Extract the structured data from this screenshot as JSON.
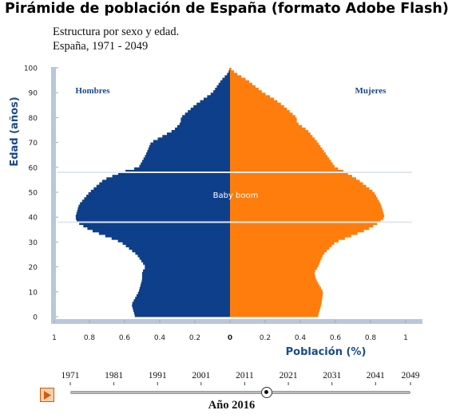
{
  "page": {
    "title": "Pirámide de población de España (formato Adobe Flash)",
    "subtitle1": "Estructura por sexo y edad.",
    "subtitle2": "España, 1971 - 2049"
  },
  "chart_data": {
    "type": "bar",
    "orientation": "horizontal-population-pyramid",
    "ylabel": "Edad (años)",
    "xlabel": "Población (%)",
    "y_ticks": [
      0,
      10,
      20,
      30,
      40,
      50,
      60,
      70,
      80,
      90,
      100
    ],
    "x_ticks_left": [
      "1",
      "0.8",
      "0.6",
      "0.4",
      "0.2",
      "0"
    ],
    "x_ticks_right": [
      "0.2",
      "0.4",
      "0.6",
      "0.8",
      "1"
    ],
    "xlim": [
      0,
      1
    ],
    "ylim": [
      0,
      100
    ],
    "annotation": "Baby boom",
    "annotation_lines_age": [
      38,
      58
    ],
    "series": [
      {
        "name": "Hombres",
        "color": "#0e3f8a",
        "ages": [
          0,
          5,
          10,
          15,
          18,
          20,
          25,
          30,
          35,
          38,
          40,
          45,
          50,
          55,
          58,
          60,
          65,
          70,
          75,
          78,
          80,
          85,
          88,
          90,
          95,
          98,
          100
        ],
        "values": [
          0.54,
          0.56,
          0.52,
          0.5,
          0.5,
          0.48,
          0.53,
          0.62,
          0.8,
          0.87,
          0.88,
          0.86,
          0.8,
          0.72,
          0.62,
          0.52,
          0.48,
          0.45,
          0.32,
          0.28,
          0.28,
          0.2,
          0.14,
          0.1,
          0.05,
          0.01,
          0
        ]
      },
      {
        "name": "Mujeres",
        "color": "#fe7d0d",
        "ages": [
          0,
          5,
          10,
          15,
          18,
          20,
          25,
          30,
          35,
          38,
          40,
          45,
          50,
          55,
          58,
          60,
          65,
          70,
          75,
          78,
          80,
          85,
          88,
          90,
          95,
          98,
          100
        ],
        "values": [
          0.5,
          0.52,
          0.53,
          0.49,
          0.48,
          0.5,
          0.53,
          0.6,
          0.78,
          0.85,
          0.88,
          0.86,
          0.82,
          0.73,
          0.66,
          0.6,
          0.55,
          0.5,
          0.44,
          0.38,
          0.38,
          0.3,
          0.24,
          0.19,
          0.1,
          0.03,
          0
        ]
      }
    ]
  },
  "timeline": {
    "years": [
      "1971",
      "1981",
      "1991",
      "2001",
      "2011",
      "2021",
      "2031",
      "2041",
      "2049"
    ],
    "year_min": 1971,
    "year_max": 2049,
    "current_year": 2016,
    "current_label": "Año 2016",
    "play_icon": "play-icon"
  },
  "colors": {
    "hombres": "#0e3f8a",
    "mujeres": "#fe7d0d",
    "axis": "#b8c7db",
    "label": "#1a4a8a"
  }
}
